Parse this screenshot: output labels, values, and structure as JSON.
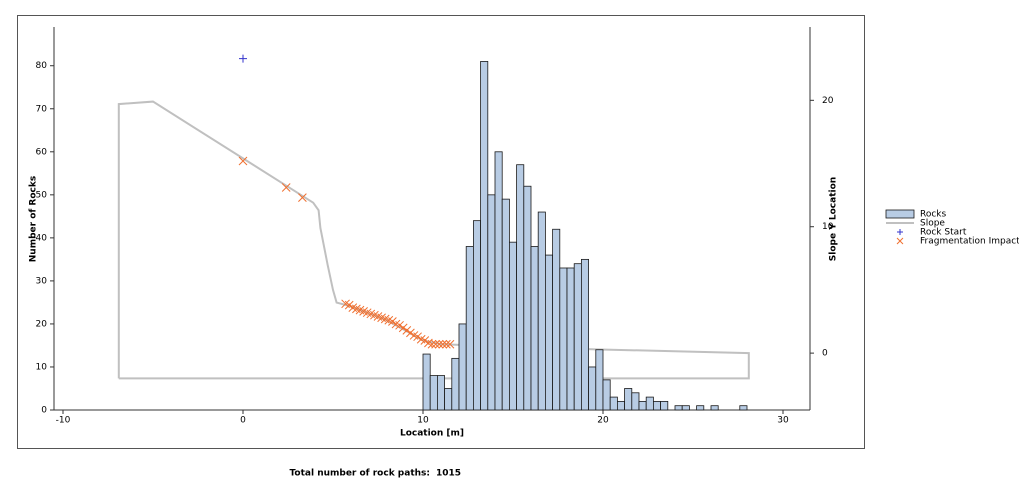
{
  "chart_data": {
    "type": "combo",
    "xlabel": "Location [m]",
    "ylabel": "Number of Rocks",
    "y2label": "Slope Y Location",
    "xlim": [
      -10.5,
      31.5
    ],
    "ylim": [
      0,
      89
    ],
    "y2lim": [
      -4.5,
      25.8
    ],
    "xticks": [
      -10,
      0,
      10,
      20,
      30
    ],
    "yticks": [
      0,
      10,
      20,
      30,
      40,
      50,
      60,
      70,
      80
    ],
    "y2ticks": [
      0,
      10,
      20
    ],
    "legend": "right",
    "footer": {
      "label": "Total number of rock paths:",
      "value": 1015
    },
    "series": [
      {
        "name": "Rocks",
        "type": "histogram",
        "color": "#b8cce4",
        "edgecolor": "#1a1a1a",
        "bins": [
          10.0,
          10.4,
          10.8,
          11.2,
          11.6,
          12.0,
          12.4,
          12.8,
          13.2,
          13.6,
          14.0,
          14.4,
          14.8,
          15.2,
          15.6,
          16.0,
          16.4,
          16.8,
          17.2,
          17.6,
          18.0,
          18.4,
          18.8,
          19.2,
          19.6,
          20.0,
          20.4,
          20.8,
          21.2,
          21.6,
          22.0,
          22.4,
          22.8,
          23.2,
          23.6,
          24.0,
          24.4,
          24.8,
          25.2,
          25.6,
          26.0,
          26.4,
          26.8,
          27.2,
          27.6,
          28.0
        ],
        "values": [
          13,
          8,
          8,
          5,
          12,
          20,
          38,
          44,
          81,
          50,
          60,
          49,
          39,
          57,
          52,
          38,
          46,
          36,
          42,
          33,
          33,
          34,
          35,
          10,
          14,
          7,
          3,
          2,
          5,
          4,
          2,
          3,
          2,
          2,
          0,
          1,
          1,
          0,
          1,
          0,
          1,
          0,
          0,
          0,
          1
        ]
      },
      {
        "name": "Slope",
        "type": "line",
        "axis": "y2",
        "color": "#c0c0c0",
        "x": [
          -6.9,
          -6.9,
          -5.0,
          3.9,
          4.2,
          4.3,
          4.7,
          5.0,
          5.2,
          6.0,
          8.0,
          10.0,
          11.0,
          19.6,
          28.1,
          28.1,
          -6.9
        ],
        "values": [
          -2.0,
          19.7,
          19.9,
          11.9,
          11.3,
          9.9,
          7.0,
          5.0,
          4.0,
          3.7,
          2.6,
          1.0,
          0.7,
          0.3,
          0.0,
          -2.0,
          -2.0
        ]
      },
      {
        "name": "Rock Start",
        "type": "scatter",
        "marker": "plus",
        "axis": "y2",
        "color": "#3333cc",
        "x": [
          0
        ],
        "values": [
          23.3
        ]
      },
      {
        "name": "Fragmentation Impact",
        "type": "scatter",
        "marker": "x",
        "axis": "y2",
        "color": "#f07030",
        "x": [
          0,
          2.4,
          3.3,
          5.7,
          5.9,
          6.1,
          6.3,
          6.5,
          6.7,
          6.9,
          7.1,
          7.3,
          7.5,
          7.7,
          7.9,
          8.1,
          8.3,
          8.5,
          8.7,
          8.9,
          9.1,
          9.3,
          9.5,
          9.7,
          9.9,
          10.1,
          10.3,
          10.5,
          10.7,
          10.9,
          11.1,
          11.3,
          11.5
        ],
        "values": [
          15.2,
          13.1,
          12.3,
          3.9,
          3.8,
          3.6,
          3.5,
          3.4,
          3.3,
          3.2,
          3.1,
          3.0,
          2.9,
          2.8,
          2.7,
          2.6,
          2.5,
          2.3,
          2.2,
          2.0,
          1.8,
          1.6,
          1.4,
          1.3,
          1.1,
          1.0,
          0.8,
          0.7,
          0.7,
          0.7,
          0.7,
          0.7,
          0.7
        ]
      }
    ]
  }
}
